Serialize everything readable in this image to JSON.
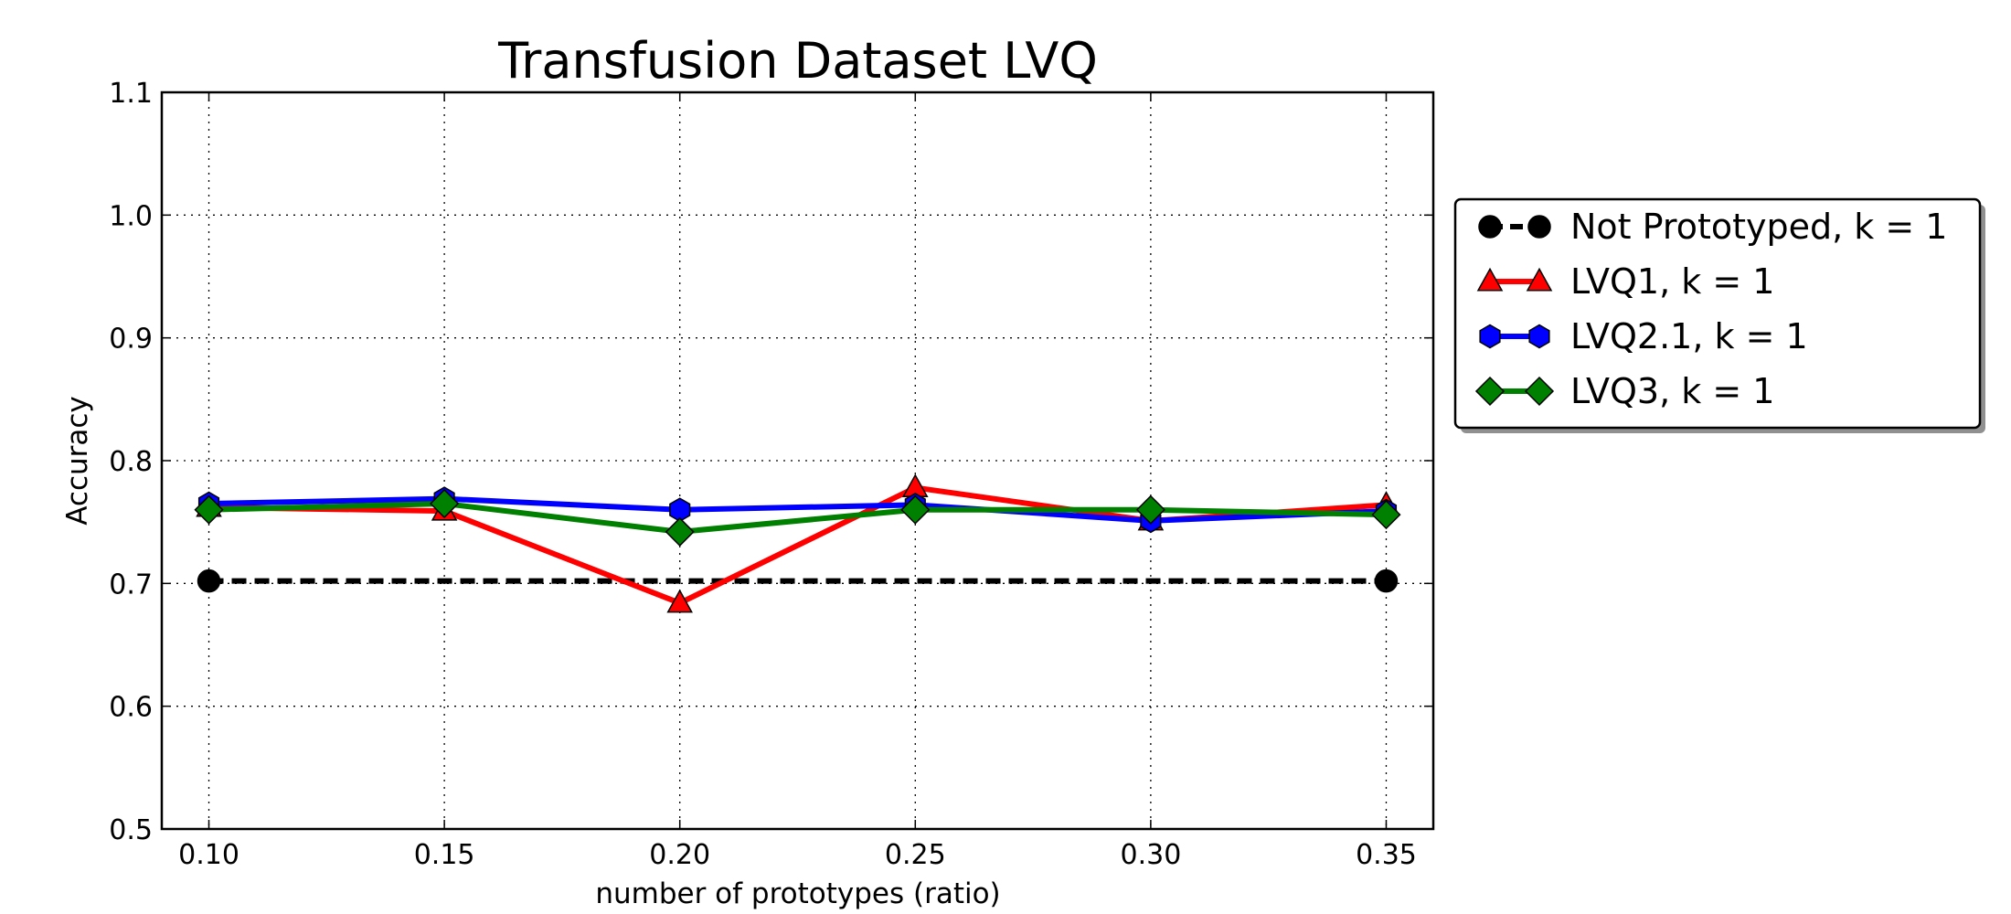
{
  "chart_data": {
    "type": "line",
    "title": "Transfusion Dataset LVQ",
    "xlabel": "number of prototypes (ratio)",
    "ylabel": "Accuracy",
    "x": [
      0.1,
      0.15,
      0.2,
      0.25,
      0.3,
      0.35
    ],
    "x_tick_labels": [
      "0.10",
      "0.15",
      "0.20",
      "0.25",
      "0.30",
      "0.35"
    ],
    "xlim": [
      0.09,
      0.36
    ],
    "ylim": [
      0.5,
      1.1
    ],
    "y_ticks": [
      0.5,
      0.6,
      0.7,
      0.8,
      0.9,
      1.0,
      1.1
    ],
    "y_tick_labels": [
      "0.5",
      "0.6",
      "0.7",
      "0.8",
      "0.9",
      "1.0",
      "1.1"
    ],
    "grid": true,
    "legend_position": "outside-right",
    "series": [
      {
        "name": "Not Prototyped, k = 1",
        "values": [
          0.702,
          null,
          null,
          null,
          null,
          0.702
        ],
        "color": "#000000",
        "marker": "circle",
        "dashed": true
      },
      {
        "name": "LVQ1, k = 1",
        "values": [
          0.762,
          0.759,
          0.684,
          0.778,
          0.751,
          0.764
        ],
        "color": "#ff0000",
        "marker": "triangle",
        "dashed": false
      },
      {
        "name": "LVQ2.1, k = 1",
        "values": [
          0.765,
          0.769,
          0.76,
          0.764,
          0.751,
          0.759
        ],
        "color": "#0000ff",
        "marker": "hexagon",
        "dashed": false
      },
      {
        "name": "LVQ3, k = 1",
        "values": [
          0.76,
          0.765,
          0.742,
          0.76,
          0.76,
          0.756
        ],
        "color": "#008000",
        "marker": "diamond",
        "dashed": false
      }
    ]
  }
}
